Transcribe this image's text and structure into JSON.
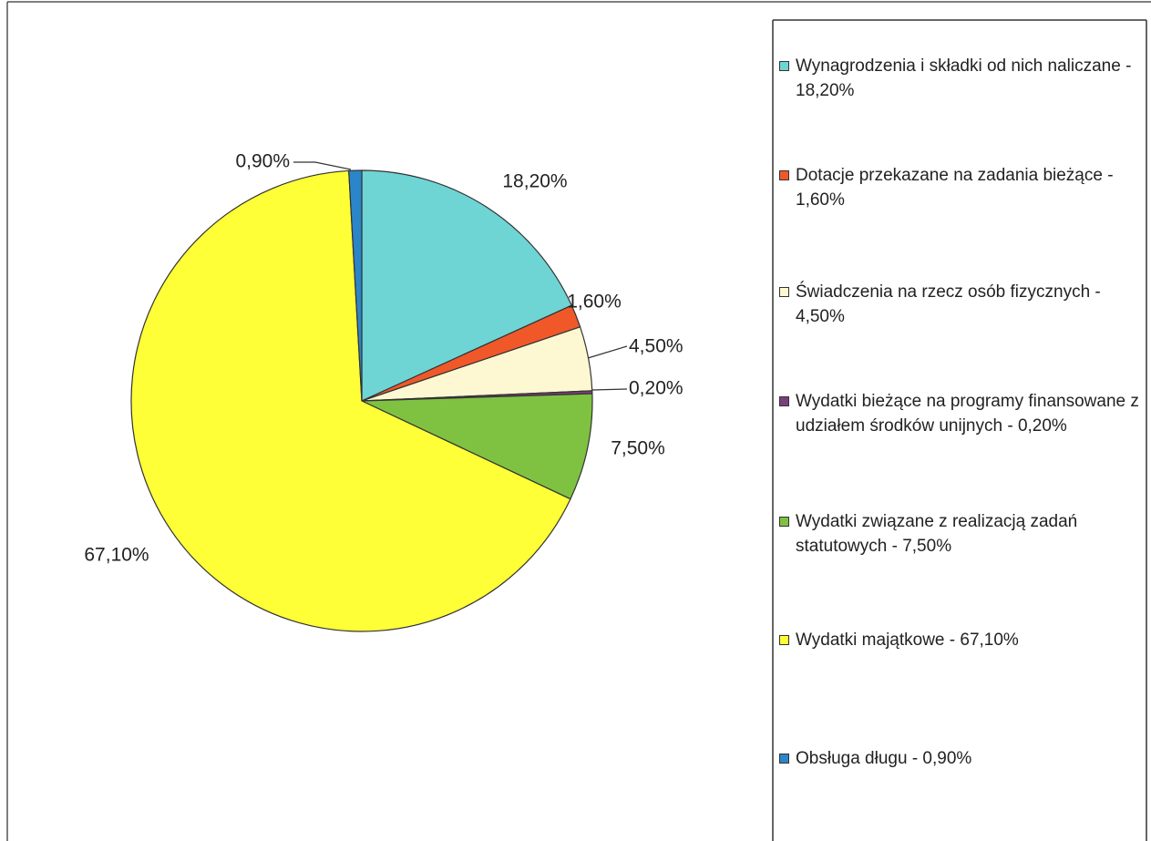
{
  "chart_data": {
    "type": "pie",
    "categories": [
      "Wynagrodzenia i składki od nich naliczane - 18,20%",
      "Dotacje przekazane na zadania bieżące - 1,60%",
      "Świadczenia na rzecz osób fizycznych - 4,50%",
      "Wydatki bieżące na programy finansowane z udziałem środków unijnych - 0,20%",
      "Wydatki związane z realizacją zadań statutowych - 7,50%",
      "Wydatki majątkowe - 67,10%",
      "Obsługa długu - 0,90%"
    ],
    "values": [
      18.2,
      1.6,
      4.5,
      0.2,
      7.5,
      67.1,
      0.9
    ],
    "value_labels": [
      "18,20%",
      "1,60%",
      "4,50%",
      "0,20%",
      "7,50%",
      "67,10%",
      "0,90%"
    ],
    "colors": [
      "#6fd4d4",
      "#f0582a",
      "#fdf8d2",
      "#7a3f7c",
      "#7fc242",
      "#ffff38",
      "#2a86c8"
    ],
    "legend": "right"
  }
}
